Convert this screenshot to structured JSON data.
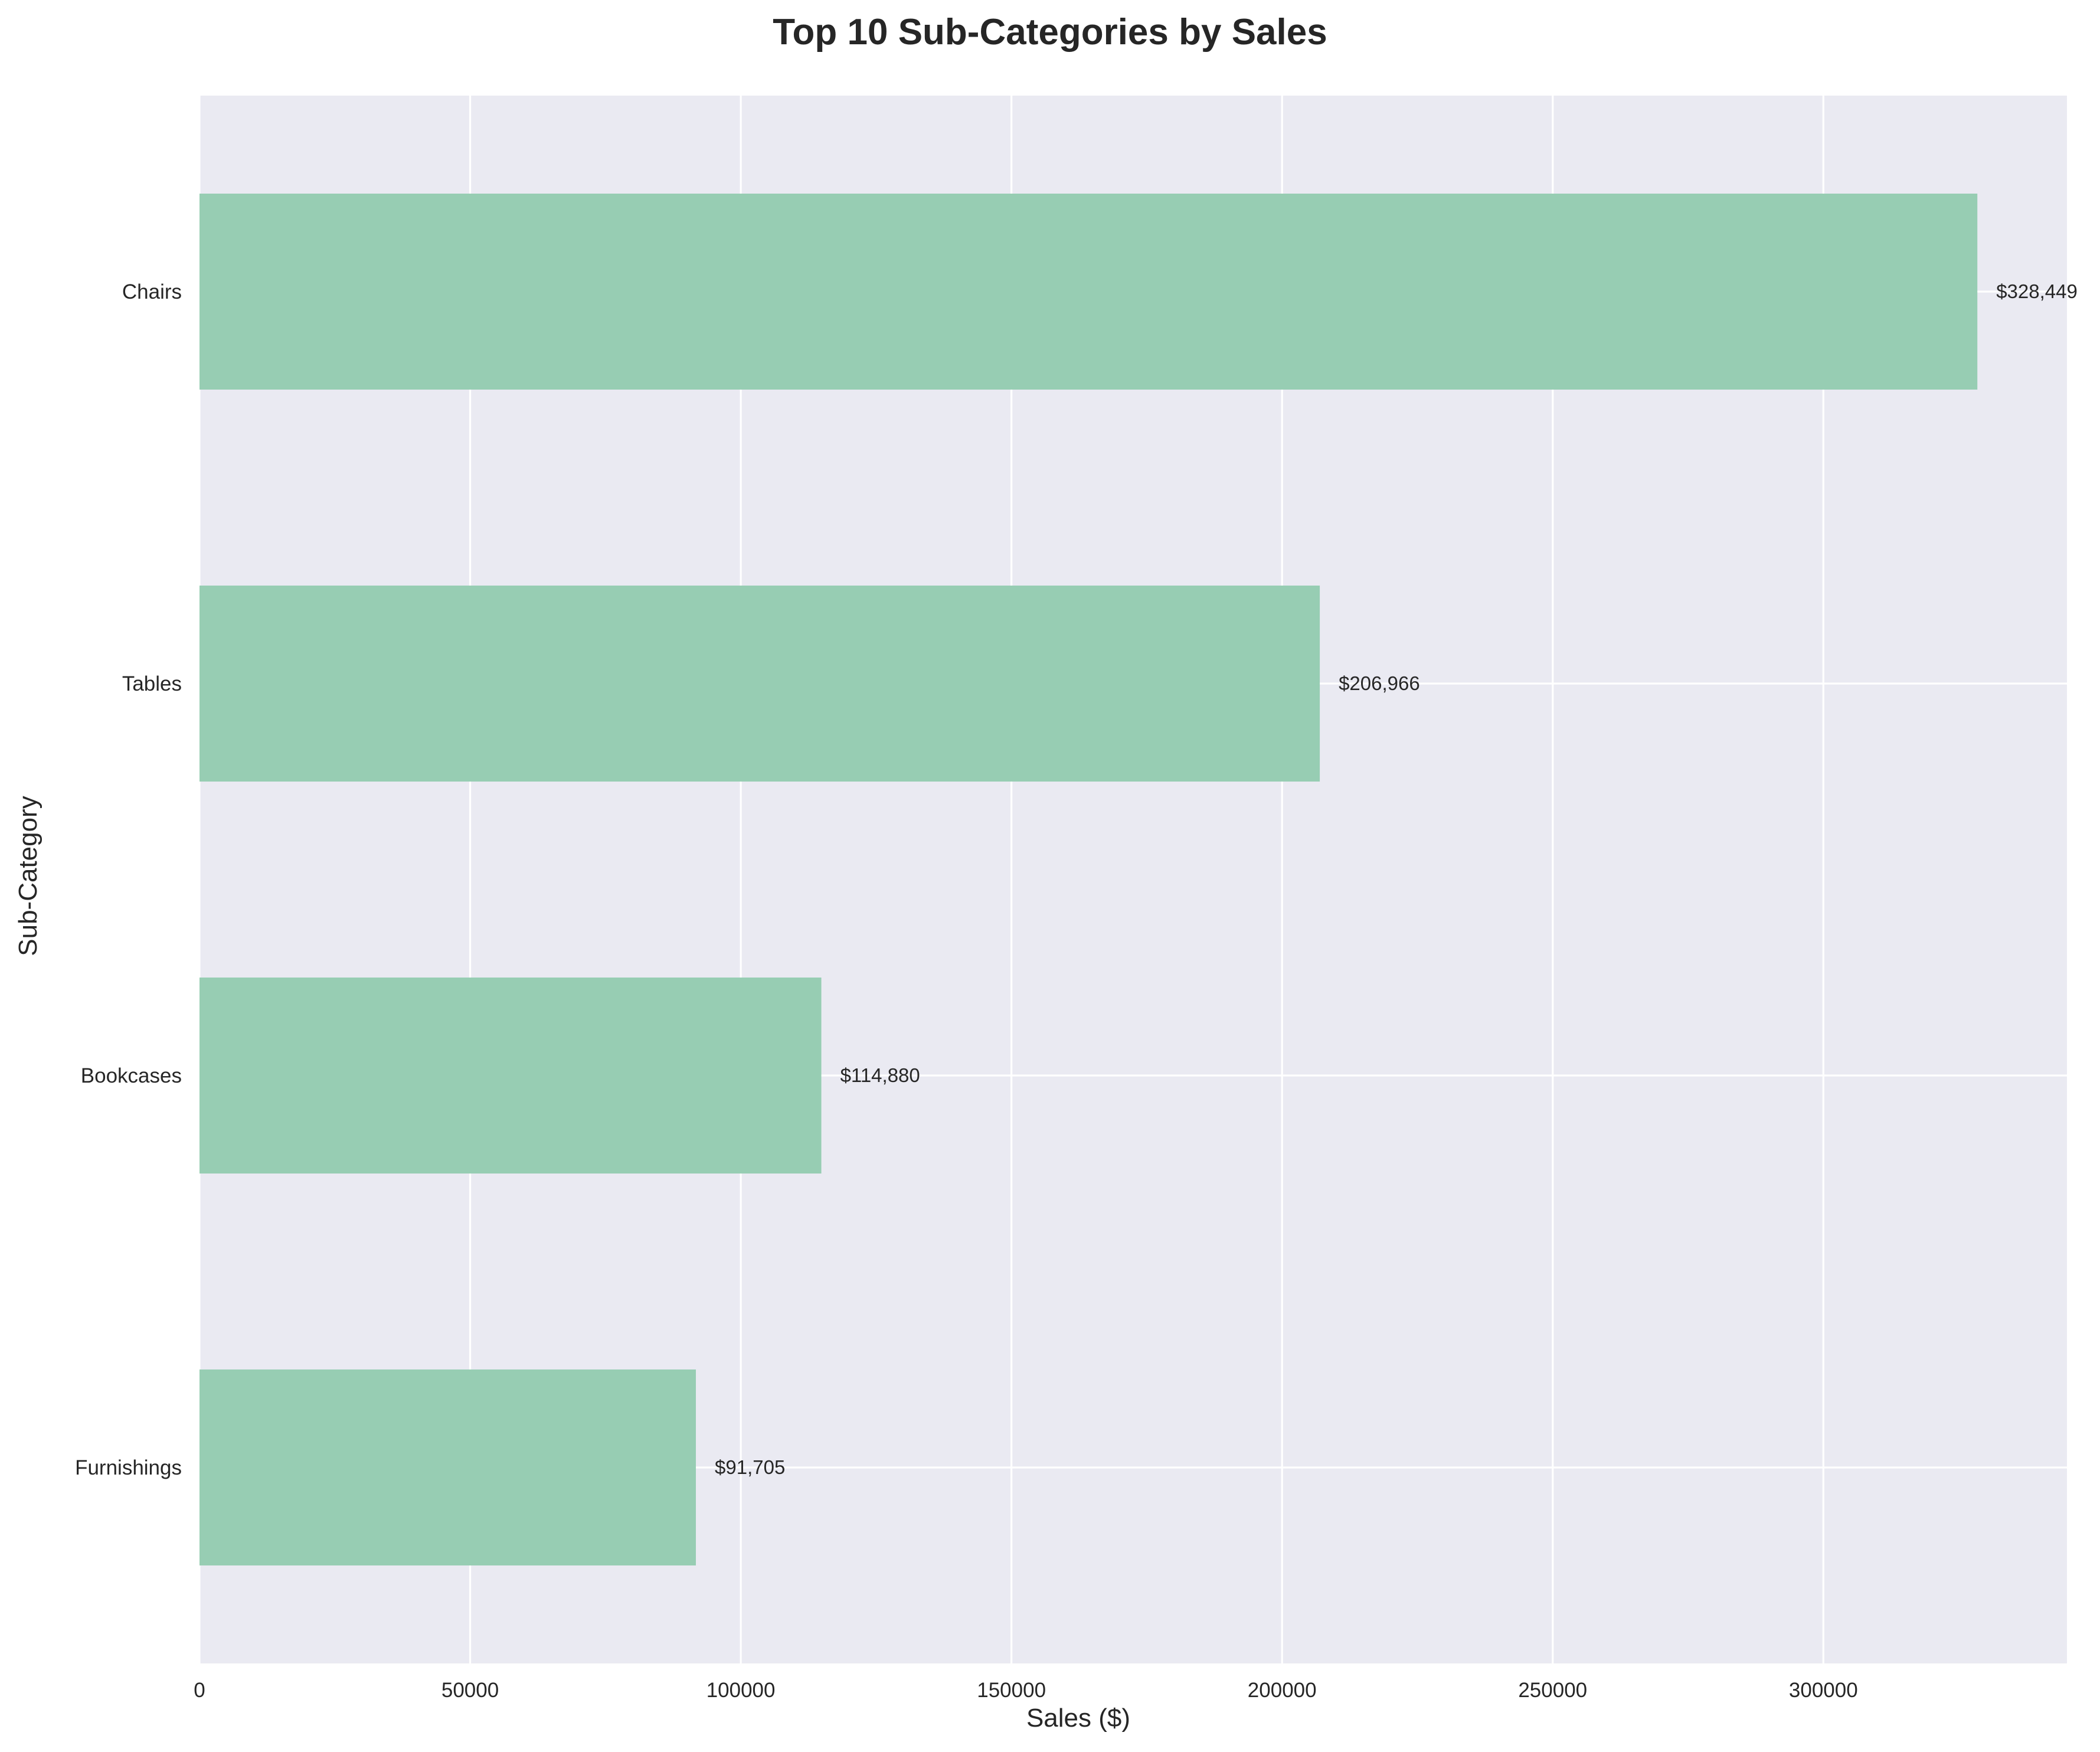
{
  "chart_data": {
    "type": "bar",
    "orientation": "horizontal",
    "title": "Top 10 Sub-Categories by Sales",
    "xlabel": "Sales ($)",
    "ylabel": "Sub-Category",
    "categories": [
      "Chairs",
      "Tables",
      "Bookcases",
      "Furnishings"
    ],
    "values": [
      328449,
      206966,
      114880,
      91705
    ],
    "value_labels": [
      "$328,449",
      "$206,966",
      "$114,880",
      "$91,705"
    ],
    "xlim": [
      0,
      345000
    ],
    "x_ticks": [
      0,
      50000,
      100000,
      150000,
      200000,
      250000,
      300000
    ],
    "x_tick_labels": [
      "0",
      "50000",
      "100000",
      "150000",
      "200000",
      "250000",
      "300000"
    ],
    "grid": true,
    "legend": "none",
    "colors": {
      "bar": "#97cdb3",
      "plot_background": "#eaeaf2",
      "grid": "#ffffff",
      "text": "#262626"
    }
  }
}
